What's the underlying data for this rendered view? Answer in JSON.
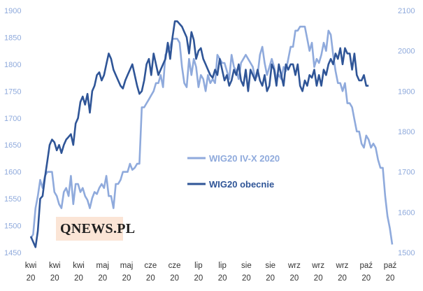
{
  "logo": {
    "text": "QNEWS.PL"
  },
  "chart_data": {
    "type": "line",
    "title": "",
    "categories": [
      "kwi 20",
      "kwi 20",
      "kwi 20",
      "maj 20",
      "maj 20",
      "cze 20",
      "cze 20",
      "lip 20",
      "lip 20",
      "sie 20",
      "sie 20",
      "wrz 20",
      "wrz 20",
      "wrz 20",
      "paź 20",
      "paź 20"
    ],
    "left_axis": {
      "ylim": [
        1450,
        1900
      ],
      "ticks": [
        1450,
        1500,
        1550,
        1600,
        1650,
        1700,
        1750,
        1800,
        1850,
        1900
      ]
    },
    "right_axis": {
      "ylim": [
        1500,
        2100
      ],
      "ticks": [
        1500,
        1600,
        1700,
        1800,
        1900,
        2000,
        2100
      ]
    },
    "colors": {
      "series1": "#8faadc",
      "series2": "#2f5597"
    },
    "series": [
      {
        "name": "WIG20 IV-X 2020",
        "axis": "right",
        "x": [
          0,
          1,
          2,
          3,
          4,
          5,
          6,
          7,
          8,
          9,
          10,
          11,
          12,
          13,
          14,
          15,
          16,
          17,
          18,
          19,
          20,
          21,
          22,
          23,
          24,
          25,
          26,
          27,
          28,
          29,
          30,
          31,
          32,
          33,
          34,
          35,
          36,
          37,
          38,
          39,
          40,
          41,
          42,
          43,
          44,
          45,
          46,
          47,
          48,
          49,
          50,
          51,
          52,
          53,
          54,
          55,
          56,
          57,
          58,
          59,
          60,
          61,
          62,
          63,
          64,
          65,
          66,
          67,
          68,
          69,
          70,
          71,
          72,
          73,
          74,
          75,
          76,
          77,
          78,
          79,
          80,
          81,
          82,
          83,
          84,
          85,
          86,
          87,
          88,
          89,
          90,
          91,
          92,
          93,
          94,
          95,
          96,
          97,
          98,
          99,
          100,
          101,
          102,
          103,
          104,
          105,
          106,
          107,
          108,
          109,
          110,
          111,
          112,
          113,
          114,
          115,
          116,
          117,
          118,
          119,
          120,
          121,
          122,
          123,
          124,
          125,
          126,
          127,
          128,
          129,
          130,
          131,
          132,
          133,
          134,
          135,
          136,
          137,
          138,
          139,
          140,
          141,
          142,
          143,
          144,
          145,
          146,
          147,
          148,
          149,
          150,
          151,
          152,
          153
        ],
        "values": [
          1535,
          1545,
          1610,
          1640,
          1680,
          1660,
          1690,
          1700,
          1700,
          1700,
          1650,
          1640,
          1620,
          1610,
          1650,
          1660,
          1640,
          1690,
          1620,
          1670,
          1670,
          1650,
          1660,
          1640,
          1630,
          1610,
          1635,
          1650,
          1645,
          1660,
          1670,
          1660,
          1690,
          1640,
          1640,
          1610,
          1670,
          1670,
          1680,
          1700,
          1700,
          1700,
          1720,
          1705,
          1710,
          1720,
          1720,
          1860,
          1860,
          1870,
          1880,
          1890,
          1900,
          1920,
          1920,
          1940,
          1910,
          1990,
          2000,
          2010,
          2030,
          2030,
          2030,
          2020,
          1960,
          1920,
          1910,
          1980,
          1940,
          1980,
          1960,
          1910,
          1940,
          1930,
          1900,
          1940,
          1920,
          1930,
          1920,
          1990,
          1980,
          1970,
          1970,
          1950,
          1930,
          1990,
          1960,
          1950,
          1930,
          1970,
          1980,
          1990,
          1980,
          1970,
          1960,
          1930,
          1940,
          1990,
          2010,
          1970,
          1940,
          1960,
          1980,
          1960,
          1930,
          1940,
          1930,
          1960,
          1950,
          1980,
          2010,
          2010,
          2050,
          2050,
          2060,
          2060,
          2060,
          2030,
          2000,
          2020,
          1960,
          1980,
          1970,
          1990,
          2020,
          2000,
          2050,
          2040,
          1990,
          1950,
          1920,
          1920,
          1900,
          1920,
          1870,
          1870,
          1860,
          1830,
          1800,
          1800,
          1770,
          1760,
          1790,
          1780,
          1760,
          1770,
          1760,
          1730,
          1710,
          1710,
          1640,
          1590,
          1560,
          1520
        ]
      },
      {
        "name": "WIG20 obecnie",
        "axis": "left",
        "x": [
          0,
          1,
          2,
          3,
          4,
          5,
          6,
          7,
          8,
          9,
          10,
          11,
          12,
          13,
          14,
          15,
          16,
          17,
          18,
          19,
          20,
          21,
          22,
          23,
          24,
          25,
          26,
          27,
          28,
          29,
          30,
          31,
          32,
          33,
          34,
          35,
          36,
          37,
          38,
          39,
          40,
          41,
          42,
          43,
          44,
          45,
          46,
          47,
          48,
          49,
          50,
          51,
          52,
          53,
          54,
          55,
          56,
          57,
          58,
          59,
          60,
          61,
          62,
          63,
          64,
          65,
          66,
          67,
          68,
          69,
          70,
          71,
          72,
          73,
          74,
          75,
          76,
          77,
          78,
          79,
          80,
          81,
          82,
          83,
          84,
          85,
          86,
          87,
          88,
          89,
          90,
          91,
          92,
          93,
          94,
          95,
          96,
          97,
          98,
          99,
          100,
          101,
          102,
          103,
          104,
          105,
          106,
          107,
          108,
          109,
          110,
          111,
          112,
          113,
          114,
          115,
          116,
          117,
          118,
          119,
          120,
          121,
          122,
          123,
          124,
          125,
          126,
          127,
          128,
          129,
          130,
          131,
          132,
          133,
          134,
          135,
          136,
          137,
          138,
          139,
          140,
          141,
          142,
          143
        ],
        "values": [
          1480,
          1470,
          1460,
          1490,
          1550,
          1555,
          1590,
          1620,
          1650,
          1660,
          1655,
          1640,
          1650,
          1635,
          1650,
          1660,
          1665,
          1670,
          1650,
          1690,
          1700,
          1730,
          1740,
          1725,
          1745,
          1710,
          1750,
          1760,
          1780,
          1785,
          1770,
          1780,
          1800,
          1820,
          1810,
          1790,
          1780,
          1770,
          1760,
          1755,
          1770,
          1780,
          1790,
          1800,
          1780,
          1760,
          1745,
          1750,
          1770,
          1800,
          1810,
          1780,
          1820,
          1800,
          1780,
          1790,
          1800,
          1810,
          1840,
          1810,
          1850,
          1880,
          1880,
          1875,
          1870,
          1860,
          1850,
          1820,
          1860,
          1845,
          1810,
          1825,
          1830,
          1810,
          1800,
          1790,
          1780,
          1775,
          1790,
          1780,
          1810,
          1790,
          1770,
          1780,
          1760,
          1770,
          1790,
          1780,
          1800,
          1770,
          1760,
          1790,
          1750,
          1790,
          1780,
          1770,
          1790,
          1770,
          1760,
          1780,
          1750,
          1760,
          1800,
          1790,
          1760,
          1800,
          1780,
          1760,
          1800,
          1790,
          1800,
          1800,
          1780,
          1800,
          1760,
          1750,
          1770,
          1760,
          1780,
          1775,
          1790,
          1760,
          1780,
          1760,
          1790,
          1780,
          1800,
          1810,
          1800,
          1820,
          1810,
          1830,
          1800,
          1830,
          1820,
          1820,
          1790,
          1820,
          1780,
          1770,
          1770,
          1780,
          1760,
          1760
        ]
      }
    ]
  }
}
